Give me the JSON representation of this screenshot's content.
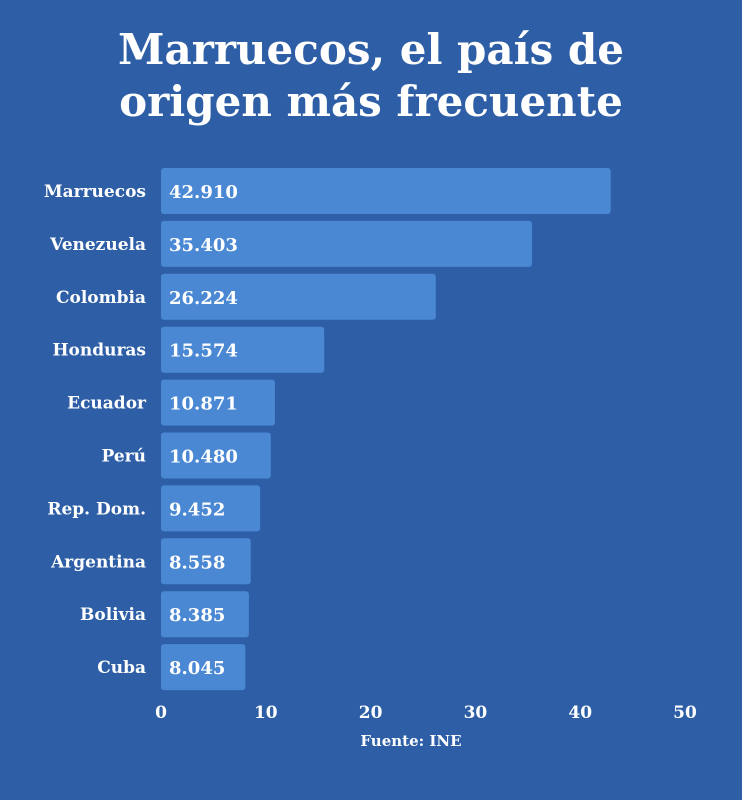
{
  "colors": {
    "background": "#2e5fa6",
    "bar": "#4a88d4",
    "text": "#ffffff"
  },
  "chart_data": {
    "type": "bar",
    "orientation": "horizontal",
    "title_lines": [
      "Marruecos, el país de",
      "origen más frecuente"
    ],
    "categories": [
      "Marruecos",
      "Venezuela",
      "Colombia",
      "Honduras",
      "Ecuador",
      "Perú",
      "Rep. Dom.",
      "Argentina",
      "Bolivia",
      "Cuba"
    ],
    "values": [
      42910,
      35403,
      26224,
      15574,
      10871,
      10480,
      9452,
      8558,
      8385,
      8045
    ],
    "value_labels": [
      "42.910",
      "35.403",
      "26.224",
      "15.574",
      "10.871",
      "10.480",
      "9.452",
      "8.558",
      "8.385",
      "8.045"
    ],
    "axis_unit": 1000,
    "xlim": [
      0,
      50
    ],
    "xticks": [
      0,
      10,
      20,
      30,
      40,
      50
    ],
    "grid": false,
    "legend": "none",
    "source": "Fuente: INE"
  }
}
